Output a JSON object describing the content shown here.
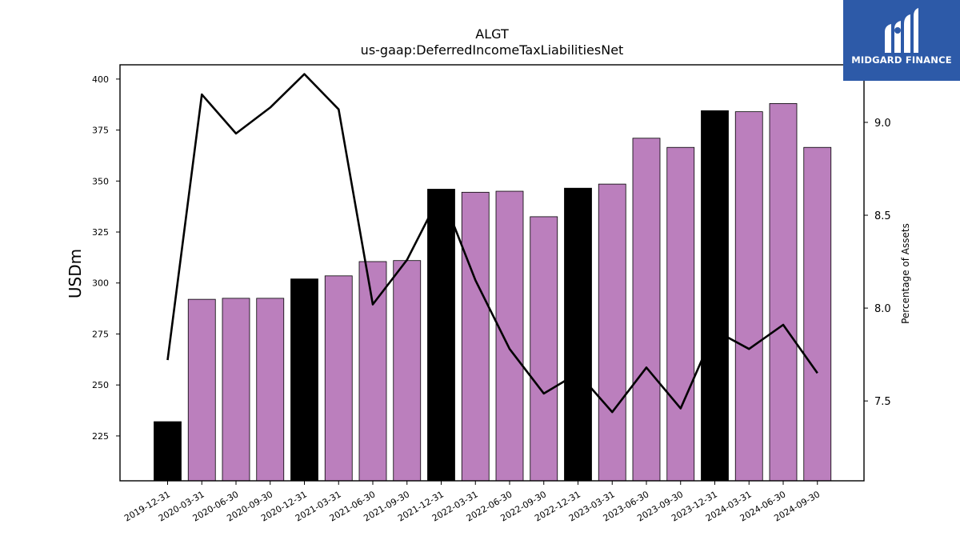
{
  "brand": {
    "name": "MIDGARD FINANCE",
    "background": "#2d5aa8",
    "text_color": "#ffffff"
  },
  "chart_data": {
    "type": "bar",
    "title": "ALGT",
    "subtitle": "us-gaap:DeferredIncomeTaxLiabilitiesNet",
    "ylabel": "USDm",
    "y2label": "Percentage of Assets",
    "ylim": [
      203,
      407
    ],
    "y2lim": [
      7.07,
      9.31
    ],
    "yticks": [
      225,
      250,
      275,
      300,
      325,
      350,
      375,
      400
    ],
    "y2ticks": [
      7.5,
      8.0,
      8.5,
      9.0
    ],
    "y2tick_labels": [
      "7.5",
      "8.0",
      "8.5",
      "9.0"
    ],
    "grid": false,
    "categories": [
      "2019-12-31",
      "2020-03-31",
      "2020-06-30",
      "2020-09-30",
      "2020-12-31",
      "2021-03-31",
      "2021-06-30",
      "2021-09-30",
      "2021-12-31",
      "2022-03-31",
      "2022-06-30",
      "2022-09-30",
      "2022-12-31",
      "2023-03-31",
      "2023-06-30",
      "2023-09-30",
      "2023-12-31",
      "2024-03-31",
      "2024-06-30",
      "2024-09-30"
    ],
    "series": [
      {
        "kind": "bar",
        "axis": "left",
        "values": [
          232,
          292,
          292.5,
          292.5,
          302,
          303.5,
          310.5,
          311,
          346,
          344.5,
          345,
          332.5,
          346.5,
          348.5,
          371,
          366.5,
          384.5,
          384,
          388,
          366.5
        ]
      },
      {
        "kind": "line",
        "axis": "right",
        "color": "#000000",
        "values": [
          7.72,
          9.15,
          8.94,
          9.08,
          9.26,
          9.07,
          8.02,
          8.26,
          8.62,
          8.15,
          7.78,
          7.54,
          7.65,
          7.44,
          7.68,
          7.46,
          7.88,
          7.78,
          7.91,
          7.65
        ]
      }
    ],
    "colors": {
      "quarter_bar": "#bb7fbd",
      "year_end_bar": "#000000",
      "bar_edge": "#000000",
      "line": "#000000"
    },
    "year_end_categories": [
      "2019-12-31",
      "2020-12-31",
      "2021-12-31",
      "2022-12-31",
      "2023-12-31"
    ]
  }
}
